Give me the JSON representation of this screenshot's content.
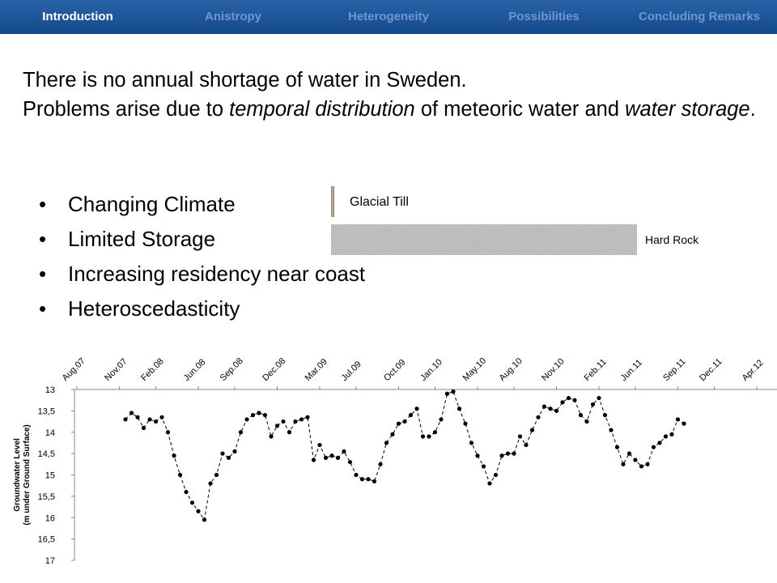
{
  "nav": [
    {
      "label": "Introduction",
      "active": true
    },
    {
      "label": "Anistropy",
      "active": false
    },
    {
      "label": "Heterogeneity",
      "active": false
    },
    {
      "label": "Possibilities",
      "active": false
    },
    {
      "label": "Concluding Remarks",
      "active": false
    }
  ],
  "paragraphs": [
    [
      {
        "text": "There is no annual shortage of water in Sweden.",
        "italic": false
      }
    ],
    [
      {
        "text": "Problems arise due to ",
        "italic": false
      },
      {
        "text": "temporal distribution",
        "italic": true
      },
      {
        "text": " of meteoric water and ",
        "italic": false
      },
      {
        "text": "water storage",
        "italic": true
      },
      {
        "text": ".",
        "italic": false
      }
    ]
  ],
  "bullets": [
    "Changing Climate",
    "Limited Storage",
    "Increasing residency near coast",
    "Heteroscedasticity"
  ],
  "layers": {
    "glacial_till": "Glacial Till",
    "hard_rock": "Hard Rock"
  },
  "chart_data": {
    "type": "line",
    "ylabel": [
      "Groundwater Level",
      "(m under Ground Surface)"
    ],
    "y_inverted": true,
    "ylim": [
      13,
      17
    ],
    "yticks": [
      13,
      {
        "value": 13.5,
        "label": "13,5"
      },
      14,
      {
        "value": 14.5,
        "label": "14,5"
      },
      15,
      {
        "value": 15.5,
        "label": "15,5"
      },
      16,
      {
        "value": 16.5,
        "label": "16,5"
      },
      17
    ],
    "categories": [
      "Aug.07",
      null,
      null,
      null,
      null,
      null,
      null,
      "Nov.07",
      null,
      null,
      null,
      null,
      null,
      "Feb.08",
      null,
      null,
      null,
      null,
      null,
      null,
      "Jun.08",
      null,
      null,
      null,
      null,
      null,
      "Sep.08",
      null,
      null,
      null,
      null,
      null,
      null,
      "Dec.08",
      null,
      null,
      null,
      null,
      null,
      null,
      "Mar.09",
      null,
      null,
      null,
      null,
      null,
      "Jul.09",
      null,
      null,
      null,
      null,
      null,
      null,
      "Oct.09",
      null,
      null,
      null,
      null,
      null,
      "Jan.10",
      null,
      null,
      null,
      null,
      null,
      null,
      "May.10",
      null,
      null,
      null,
      null,
      null,
      "Aug.10",
      null,
      null,
      null,
      null,
      null,
      null,
      "Nov.10",
      null,
      null,
      null,
      null,
      null,
      null,
      "Feb.11",
      null,
      null,
      null,
      null,
      null,
      "Jun.11",
      null,
      null,
      null,
      null,
      null,
      null,
      "Sep.11",
      null,
      null,
      null,
      null,
      null,
      "Dec.11",
      null,
      null,
      null,
      null,
      null,
      null,
      "Apr.12"
    ],
    "series": [
      {
        "color": "#000000",
        "values": [
          null,
          null,
          null,
          null,
          null,
          null,
          null,
          null,
          13.7,
          13.55,
          13.65,
          13.9,
          13.7,
          13.75,
          13.65,
          14,
          14.55,
          15,
          15.4,
          15.65,
          15.85,
          16.05,
          15.2,
          15,
          14.5,
          14.6,
          14.45,
          14,
          13.7,
          13.6,
          13.55,
          13.6,
          14.1,
          13.85,
          13.75,
          14,
          13.75,
          13.7,
          13.65,
          14.65,
          14.3,
          14.6,
          14.55,
          14.6,
          14.45,
          14.7,
          15,
          15.1,
          15.1,
          15.15,
          14.75,
          14.25,
          14.05,
          13.8,
          13.75,
          13.6,
          13.45,
          14.1,
          14.1,
          14,
          13.7,
          13.1,
          13.05,
          13.45,
          13.8,
          14.25,
          14.55,
          14.8,
          15.2,
          15,
          14.55,
          14.5,
          14.5,
          14.1,
          14.3,
          13.95,
          13.65,
          13.4,
          13.45,
          13.5,
          13.3,
          13.2,
          13.25,
          13.6,
          13.75,
          13.35,
          13.2,
          13.6,
          13.95,
          14.35,
          14.75,
          14.5,
          14.65,
          14.8,
          14.75,
          14.35,
          14.25,
          14.1,
          14.05,
          13.7,
          13.8,
          null,
          null,
          null,
          null,
          null,
          null,
          null,
          null,
          null,
          null,
          null,
          null
        ]
      }
    ]
  }
}
